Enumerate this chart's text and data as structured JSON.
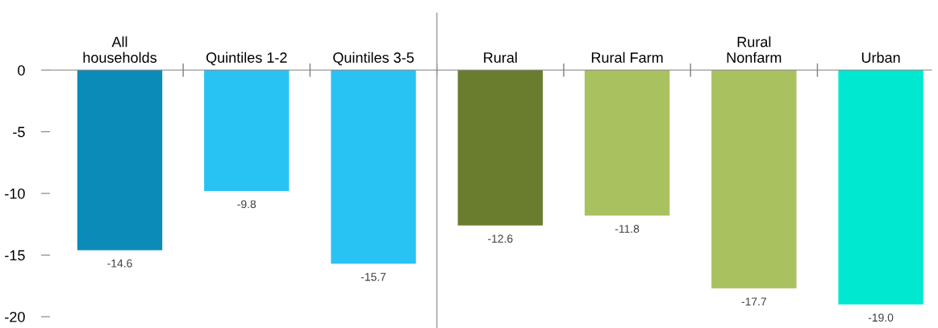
{
  "chart_data": {
    "type": "bar",
    "categories": [
      "All\nhouseholds",
      "Quintiles 1-2",
      "Quintiles 3-5",
      "Rural",
      "Rural Farm",
      "Rural\nNonfarm",
      "Urban"
    ],
    "values": [
      -14.6,
      -9.8,
      -15.7,
      -12.6,
      -11.8,
      -17.7,
      -19.0
    ],
    "value_labels": [
      "-14.6",
      "-9.8",
      "-15.7",
      "-12.6",
      "-11.8",
      "-17.7",
      "-19.0"
    ],
    "colors": [
      "#0b8cb8",
      "#29c3f3",
      "#29c3f3",
      "#6a7d2e",
      "#a9c15f",
      "#a9c15f",
      "#00e8d0"
    ],
    "ylim": [
      -20,
      0
    ],
    "yticks": [
      0,
      -5,
      -10,
      -15,
      -20
    ],
    "grid": false,
    "legend": false
  }
}
